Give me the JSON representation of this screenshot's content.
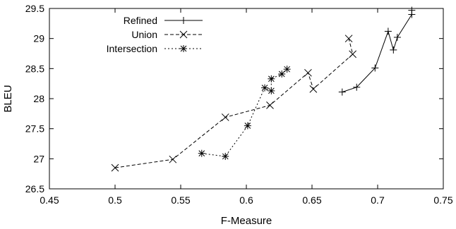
{
  "chart_data": {
    "type": "line",
    "title": "",
    "xlabel": "F-Measure",
    "ylabel": "BLEU",
    "xlim": [
      0.45,
      0.75
    ],
    "ylim": [
      26.5,
      29.5
    ],
    "xticks": [
      "0.45",
      "0.5",
      "0.55",
      "0.6",
      "0.65",
      "0.7",
      "0.75"
    ],
    "yticks": [
      "26.5",
      "27",
      "27.5",
      "28",
      "28.5",
      "29",
      "29.5"
    ],
    "grid": false,
    "legend_position": "top-left",
    "series": [
      {
        "name": "Refined",
        "marker": "plus",
        "line_style": "solid",
        "x": [
          0.673,
          0.684,
          0.698,
          0.708,
          0.712,
          0.715,
          0.726,
          0.726
        ],
        "y": [
          28.11,
          28.19,
          28.51,
          29.12,
          28.81,
          29.02,
          29.4,
          29.47
        ]
      },
      {
        "name": "Union",
        "marker": "x",
        "line_style": "dashed",
        "x": [
          0.5,
          0.544,
          0.584,
          0.618,
          0.647,
          0.651,
          0.681,
          0.678
        ],
        "y": [
          26.85,
          26.99,
          27.69,
          27.89,
          28.43,
          28.16,
          28.74,
          29.0
        ]
      },
      {
        "name": "Intersection",
        "marker": "asterisk",
        "line_style": "dotted",
        "x": [
          0.566,
          0.584,
          0.601,
          0.614,
          0.619,
          0.619,
          0.627,
          0.631
        ],
        "y": [
          27.09,
          27.04,
          27.55,
          28.18,
          28.13,
          28.33,
          28.41,
          28.49
        ]
      }
    ]
  }
}
